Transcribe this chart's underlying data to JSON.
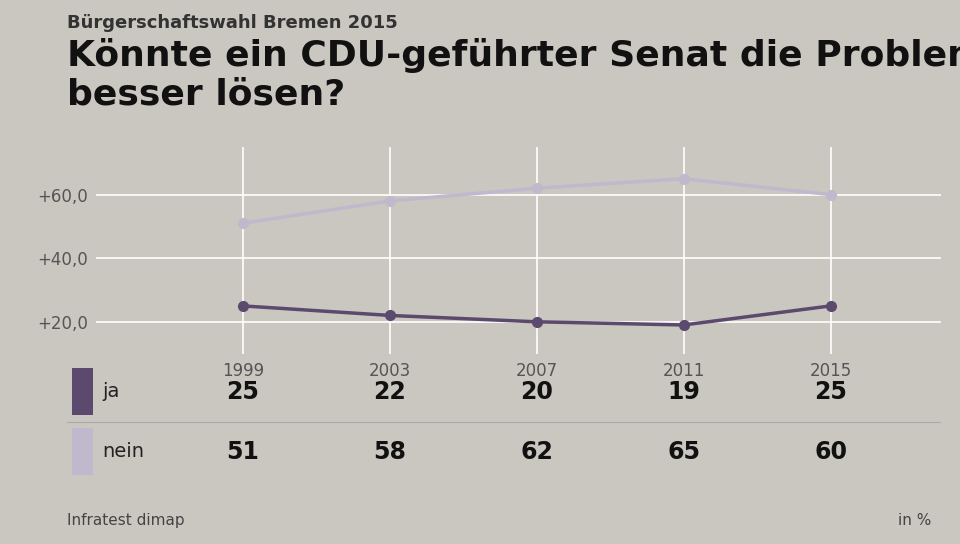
{
  "supertitle": "Bürgerschaftswahl Bremen 2015",
  "title": "Könnte ein CDU-geführter Senat die Probleme\nbesser lösen?",
  "years": [
    1999,
    2003,
    2007,
    2011,
    2015
  ],
  "ja_values": [
    25,
    22,
    20,
    19,
    25
  ],
  "nein_values": [
    51,
    58,
    62,
    65,
    60
  ],
  "ja_color": "#5c4a6e",
  "nein_color": "#c0b8cc",
  "background_color": "#cac7c0",
  "table_bg_color": "#f0eeea",
  "plot_bg_color": "#cac7c0",
  "ylim": [
    10,
    75
  ],
  "yticks": [
    20,
    40,
    60
  ],
  "ytick_labels": [
    "+20,0",
    "+40,0",
    "+60,0"
  ],
  "xlim_min": 1995,
  "xlim_max": 2018,
  "source": "Infratest dimap",
  "unit": "in %",
  "legend_ja": "ja",
  "legend_nein": "nein",
  "supertitle_fontsize": 13,
  "title_fontsize": 26,
  "table_value_fontsize": 17,
  "table_label_fontsize": 14,
  "axis_tick_fontsize": 12
}
